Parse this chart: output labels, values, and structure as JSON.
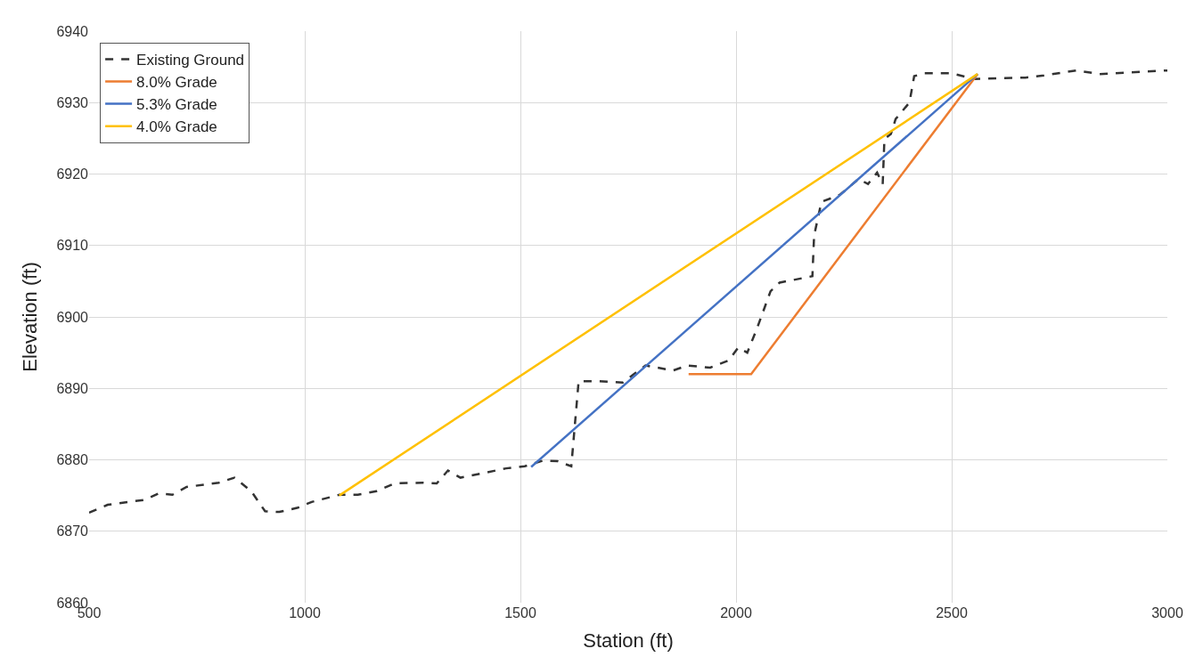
{
  "chart_data": {
    "type": "line",
    "xlabel": "Station (ft)",
    "ylabel": "Elevation (ft)",
    "xlim": [
      500,
      3000
    ],
    "xticks": [
      500,
      1000,
      1500,
      2000,
      2500,
      3000
    ],
    "ylim": [
      6860,
      6940
    ],
    "yticks": [
      6860,
      6870,
      6880,
      6890,
      6900,
      6910,
      6920,
      6930,
      6940
    ],
    "grid": true,
    "legend": "top left",
    "marker": "none",
    "series": [
      {
        "name": "Existing Ground",
        "color": "#333333",
        "line_style": "dashed",
        "x": [
          500,
          543,
          629,
          661,
          693,
          726,
          801,
          837,
          876,
          908,
          941,
          984,
          1016,
          1080,
          1123,
          1166,
          1209,
          1274,
          1306,
          1332,
          1361,
          1403,
          1467,
          1510,
          1553,
          1586,
          1618,
          1635,
          1682,
          1737,
          1790,
          1854,
          1887,
          1940,
          1983,
          2005,
          2026,
          2048,
          2080,
          2101,
          2177,
          2181,
          2198,
          2241,
          2284,
          2306,
          2327,
          2340,
          2344,
          2359,
          2370,
          2402,
          2413,
          2435,
          2499,
          2553,
          2671,
          2714,
          2789,
          2843,
          3000
        ],
        "values": [
          6872.6,
          6873.7,
          6874.4,
          6875.3,
          6875.1,
          6876.2,
          6876.8,
          6877.5,
          6875.6,
          6872.8,
          6872.7,
          6873.3,
          6874.1,
          6875.1,
          6875.1,
          6875.6,
          6876.7,
          6876.8,
          6876.7,
          6878.5,
          6877.5,
          6878.0,
          6878.8,
          6879.1,
          6879.9,
          6879.8,
          6879.1,
          6891.0,
          6891.0,
          6890.8,
          6893.2,
          6892.5,
          6893.2,
          6892.9,
          6893.9,
          6895.7,
          6895.0,
          6898.3,
          6903.6,
          6904.8,
          6905.7,
          6911.4,
          6916.1,
          6917.1,
          6919.3,
          6918.6,
          6920.2,
          6918.6,
          6924.9,
          6925.6,
          6927.7,
          6930.0,
          6933.7,
          6934.1,
          6934.1,
          6933.3,
          6933.5,
          6933.8,
          6934.5,
          6934.0,
          6934.5
        ]
      },
      {
        "name": "8.0% Grade",
        "color": "#ed7d31",
        "line_style": "solid",
        "x": [
          1890,
          2035,
          2560
        ],
        "values": [
          6892,
          6892,
          6934
        ]
      },
      {
        "name": "5.3% Grade",
        "color": "#4472c4",
        "line_style": "solid",
        "x": [
          1525,
          2560
        ],
        "values": [
          6879,
          6934
        ]
      },
      {
        "name": "4.0% Grade",
        "color": "#ffc000",
        "line_style": "solid",
        "x": [
          1080,
          2560
        ],
        "values": [
          6875,
          6934
        ]
      }
    ]
  }
}
